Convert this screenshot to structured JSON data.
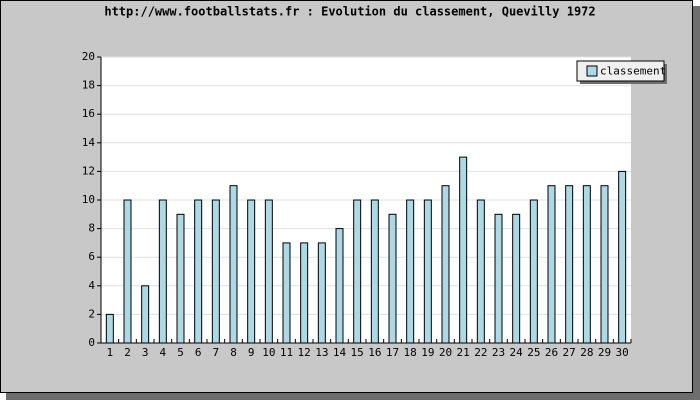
{
  "chart_data": {
    "type": "bar",
    "title": "http://www.footballstats.fr : Evolution du classement, Quevilly 1972",
    "categories": [
      "1",
      "2",
      "3",
      "4",
      "5",
      "6",
      "7",
      "8",
      "9",
      "10",
      "11",
      "12",
      "13",
      "14",
      "15",
      "16",
      "17",
      "18",
      "19",
      "20",
      "21",
      "22",
      "23",
      "24",
      "25",
      "26",
      "27",
      "28",
      "29",
      "30"
    ],
    "series": [
      {
        "name": "classement",
        "color": "#add8e6",
        "values": [
          2,
          10,
          4,
          10,
          9,
          10,
          10,
          11,
          10,
          10,
          7,
          7,
          7,
          8,
          10,
          10,
          9,
          10,
          10,
          11,
          13,
          10,
          9,
          9,
          10,
          11,
          11,
          11,
          11,
          12
        ]
      }
    ],
    "ylim": [
      0,
      20
    ],
    "yticks": [
      0,
      2,
      4,
      6,
      8,
      10,
      12,
      14,
      16,
      18,
      20
    ],
    "grid": true,
    "legend": "top-right"
  }
}
